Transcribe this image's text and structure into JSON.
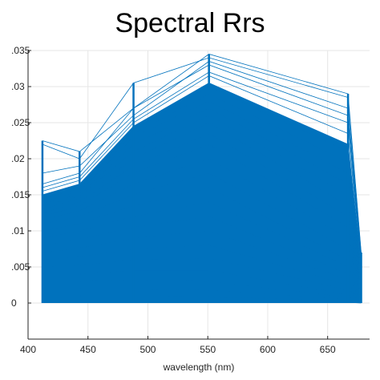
{
  "chart_data": {
    "type": "line",
    "title": "Spectral Rrs",
    "xlabel": "wavelength (nm)",
    "ylabel": "",
    "xlim": [
      400,
      685
    ],
    "ylim": [
      -0.005,
      0.035
    ],
    "x_ticks": [
      400,
      450,
      500,
      550,
      600,
      650
    ],
    "x_tick_labels": [
      "400",
      "450",
      "500",
      "550",
      "600",
      "650"
    ],
    "y_ticks": [
      0,
      0.005,
      0.01,
      0.015,
      0.02,
      0.025,
      0.03,
      0.035
    ],
    "y_tick_labels": [
      "0",
      ".005",
      ".01",
      ".015",
      ".02",
      ".025",
      ".03",
      ".035"
    ],
    "grid": true,
    "line_color": "#0072BD",
    "wavelengths": [
      412,
      443,
      488,
      551,
      667,
      678
    ],
    "series": [
      {
        "values": [
          0.0225,
          0.021,
          0.027,
          0.0345,
          0.029,
          0.007
        ]
      },
      {
        "values": [
          0.022,
          0.02,
          0.0305,
          0.034,
          0.0285,
          0.0068
        ]
      },
      {
        "values": [
          0.018,
          0.019,
          0.026,
          0.0335,
          0.027,
          0.0065
        ]
      },
      {
        "values": [
          0.0165,
          0.018,
          0.027,
          0.033,
          0.026,
          0.0062
        ]
      },
      {
        "values": [
          0.016,
          0.0175,
          0.0255,
          0.032,
          0.025,
          0.006
        ]
      },
      {
        "values": [
          0.0155,
          0.017,
          0.025,
          0.0315,
          0.0235,
          0.0058
        ]
      },
      {
        "values": [
          0.015,
          0.0165,
          0.0245,
          0.0305,
          0.022,
          0.0055
        ]
      },
      {
        "values": [
          0.0148,
          0.016,
          0.024,
          0.03,
          0.021,
          0.0052
        ]
      },
      {
        "values": [
          0.0145,
          0.0158,
          0.0235,
          0.029,
          0.0195,
          0.005
        ]
      },
      {
        "values": [
          0.014,
          0.0155,
          0.023,
          0.028,
          0.018,
          0.0048
        ]
      },
      {
        "values": [
          0.0138,
          0.015,
          0.022,
          0.027,
          0.0165,
          0.0045
        ]
      },
      {
        "values": [
          0.0135,
          0.0148,
          0.021,
          0.026,
          0.015,
          0.0042
        ]
      },
      {
        "values": [
          0.013,
          0.0145,
          0.02,
          0.025,
          0.0135,
          0.004
        ]
      },
      {
        "values": [
          0.0125,
          0.014,
          0.019,
          0.0235,
          0.012,
          0.0036
        ]
      },
      {
        "values": [
          0.012,
          0.0135,
          0.018,
          0.022,
          0.0105,
          0.0033
        ]
      },
      {
        "values": [
          0.0115,
          0.0128,
          0.0165,
          0.02,
          0.009,
          0.003
        ]
      },
      {
        "values": [
          0.011,
          0.012,
          0.015,
          0.018,
          0.0075,
          0.0026
        ]
      },
      {
        "values": [
          0.01,
          0.011,
          0.0135,
          0.016,
          0.006,
          0.0022
        ]
      },
      {
        "values": [
          0.009,
          0.01,
          0.012,
          0.014,
          0.005,
          0.0018
        ]
      },
      {
        "values": [
          0.008,
          0.0088,
          0.0105,
          0.012,
          0.004,
          0.0015
        ]
      },
      {
        "values": [
          0.007,
          0.0076,
          0.009,
          0.01,
          0.0032,
          0.0012
        ]
      },
      {
        "values": [
          0.006,
          0.0064,
          0.0075,
          0.008,
          0.0025,
          0.001
        ]
      },
      {
        "values": [
          0.005,
          0.0052,
          0.006,
          0.0062,
          0.0018,
          0.0008
        ]
      },
      {
        "values": [
          0.004,
          0.004,
          0.0045,
          0.0045,
          0.0012,
          0.0006
        ]
      },
      {
        "values": [
          0.003,
          0.003,
          0.0032,
          0.003,
          0.0008,
          0.0004
        ]
      },
      {
        "values": [
          0.002,
          0.002,
          0.002,
          0.0018,
          0.0005,
          0.0003
        ]
      },
      {
        "values": [
          0.001,
          0.001,
          0.001,
          0.0009,
          0.0003,
          0.0002
        ]
      },
      {
        "values": [
          0.0002,
          0.0002,
          0.0002,
          0.0002,
          0.0001,
          0.0
        ]
      }
    ]
  }
}
